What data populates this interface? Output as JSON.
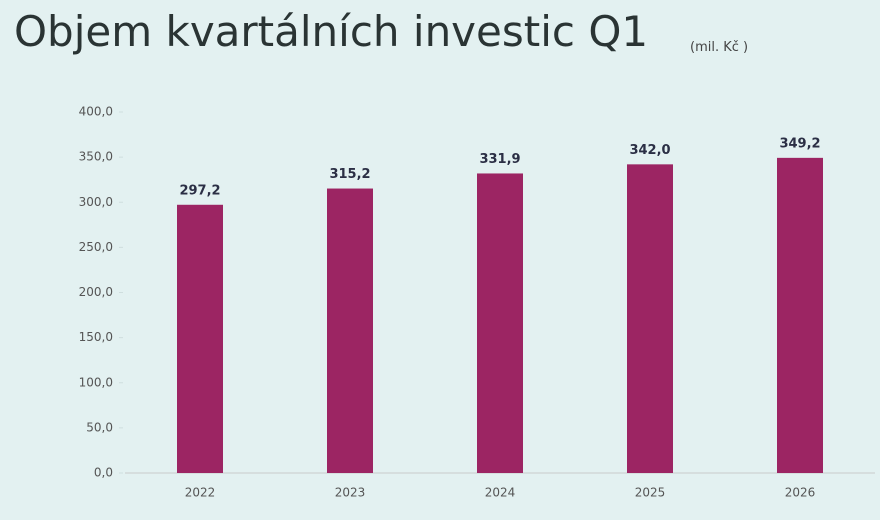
{
  "chart_data": {
    "type": "bar",
    "title": "Objem kvartálních investic Q1",
    "subtitle": "(mil. Kč )",
    "categories": [
      "2022",
      "2023",
      "2024",
      "2025",
      "2026"
    ],
    "values": [
      297.2,
      315.2,
      331.9,
      342.0,
      349.2
    ],
    "value_labels": [
      "297,2",
      "315,2",
      "331,9",
      "342,0",
      "349,2"
    ],
    "color": "#9c2563",
    "ylim": [
      0,
      400
    ],
    "yticks": [
      {
        "value": 0,
        "label": "0,0"
      },
      {
        "value": 50,
        "label": "50,0"
      },
      {
        "value": 100,
        "label": "100,0"
      },
      {
        "value": 150,
        "label": "150,0"
      },
      {
        "value": 200,
        "label": "200,0"
      },
      {
        "value": 250,
        "label": "250,0"
      },
      {
        "value": 300,
        "label": "300,0"
      },
      {
        "value": 350,
        "label": "350,0"
      },
      {
        "value": 400,
        "label": "400,0"
      }
    ],
    "grid": false
  }
}
